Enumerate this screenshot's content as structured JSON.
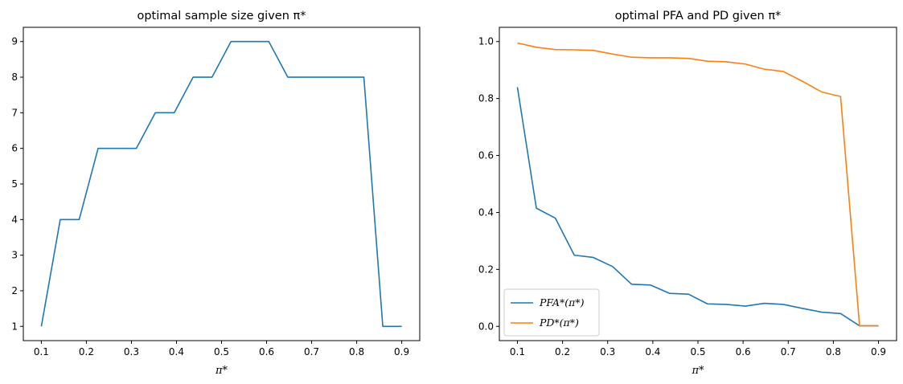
{
  "chart_data": [
    {
      "type": "line",
      "title": "optimal sample size given π*",
      "xlabel": "π*",
      "ylabel": "",
      "xlim": [
        0.06,
        0.94
      ],
      "ylim": [
        0.6,
        9.4
      ],
      "xticks": [
        0.1,
        0.2,
        0.3,
        0.4,
        0.5,
        0.6,
        0.7,
        0.8,
        0.9
      ],
      "xtick_labels": [
        "0.1",
        "0.2",
        "0.3",
        "0.4",
        "0.5",
        "0.6",
        "0.7",
        "0.8",
        "0.9"
      ],
      "yticks": [
        1,
        2,
        3,
        4,
        5,
        6,
        7,
        8,
        9
      ],
      "ytick_labels": [
        "1",
        "2",
        "3",
        "4",
        "5",
        "6",
        "7",
        "8",
        "9"
      ],
      "grid": false,
      "x": [
        0.1,
        0.142,
        0.184,
        0.226,
        0.268,
        0.311,
        0.353,
        0.395,
        0.437,
        0.479,
        0.521,
        0.563,
        0.605,
        0.647,
        0.689,
        0.732,
        0.774,
        0.816,
        0.858,
        0.9
      ],
      "series": [
        {
          "name": "",
          "color": "#1f77b4",
          "values": [
            1,
            4,
            4,
            6,
            6,
            6,
            7,
            7,
            8,
            8,
            9,
            9,
            9,
            8,
            8,
            8,
            8,
            8,
            1,
            1
          ]
        }
      ]
    },
    {
      "type": "line",
      "title": "optimal PFA and PD given π*",
      "xlabel": "π*",
      "ylabel": "",
      "xlim": [
        0.06,
        0.94
      ],
      "ylim": [
        -0.05,
        1.05
      ],
      "xticks": [
        0.1,
        0.2,
        0.3,
        0.4,
        0.5,
        0.6,
        0.7,
        0.8,
        0.9
      ],
      "xtick_labels": [
        "0.1",
        "0.2",
        "0.3",
        "0.4",
        "0.5",
        "0.6",
        "0.7",
        "0.8",
        "0.9"
      ],
      "yticks": [
        0.0,
        0.2,
        0.4,
        0.6,
        0.8,
        1.0
      ],
      "ytick_labels": [
        "0.0",
        "0.2",
        "0.4",
        "0.6",
        "0.8",
        "1.0"
      ],
      "grid": false,
      "legend_position": "lower-left",
      "x": [
        0.1,
        0.142,
        0.184,
        0.226,
        0.268,
        0.311,
        0.353,
        0.395,
        0.437,
        0.479,
        0.521,
        0.563,
        0.605,
        0.647,
        0.689,
        0.732,
        0.774,
        0.816,
        0.858,
        0.9
      ],
      "series": [
        {
          "name": "PFA*(π*)",
          "color": "#1f77b4",
          "values": [
            0.84,
            0.415,
            0.38,
            0.25,
            0.242,
            0.21,
            0.148,
            0.145,
            0.116,
            0.113,
            0.079,
            0.077,
            0.071,
            0.081,
            0.077,
            0.063,
            0.05,
            0.045,
            0.002,
            0.002
          ]
        },
        {
          "name": "PD*(π*)",
          "color": "#ff7f0e",
          "values": [
            0.995,
            0.98,
            0.972,
            0.971,
            0.969,
            0.956,
            0.945,
            0.943,
            0.943,
            0.941,
            0.931,
            0.929,
            0.921,
            0.903,
            0.895,
            0.86,
            0.823,
            0.807,
            0.002,
            0.002
          ]
        }
      ]
    }
  ]
}
